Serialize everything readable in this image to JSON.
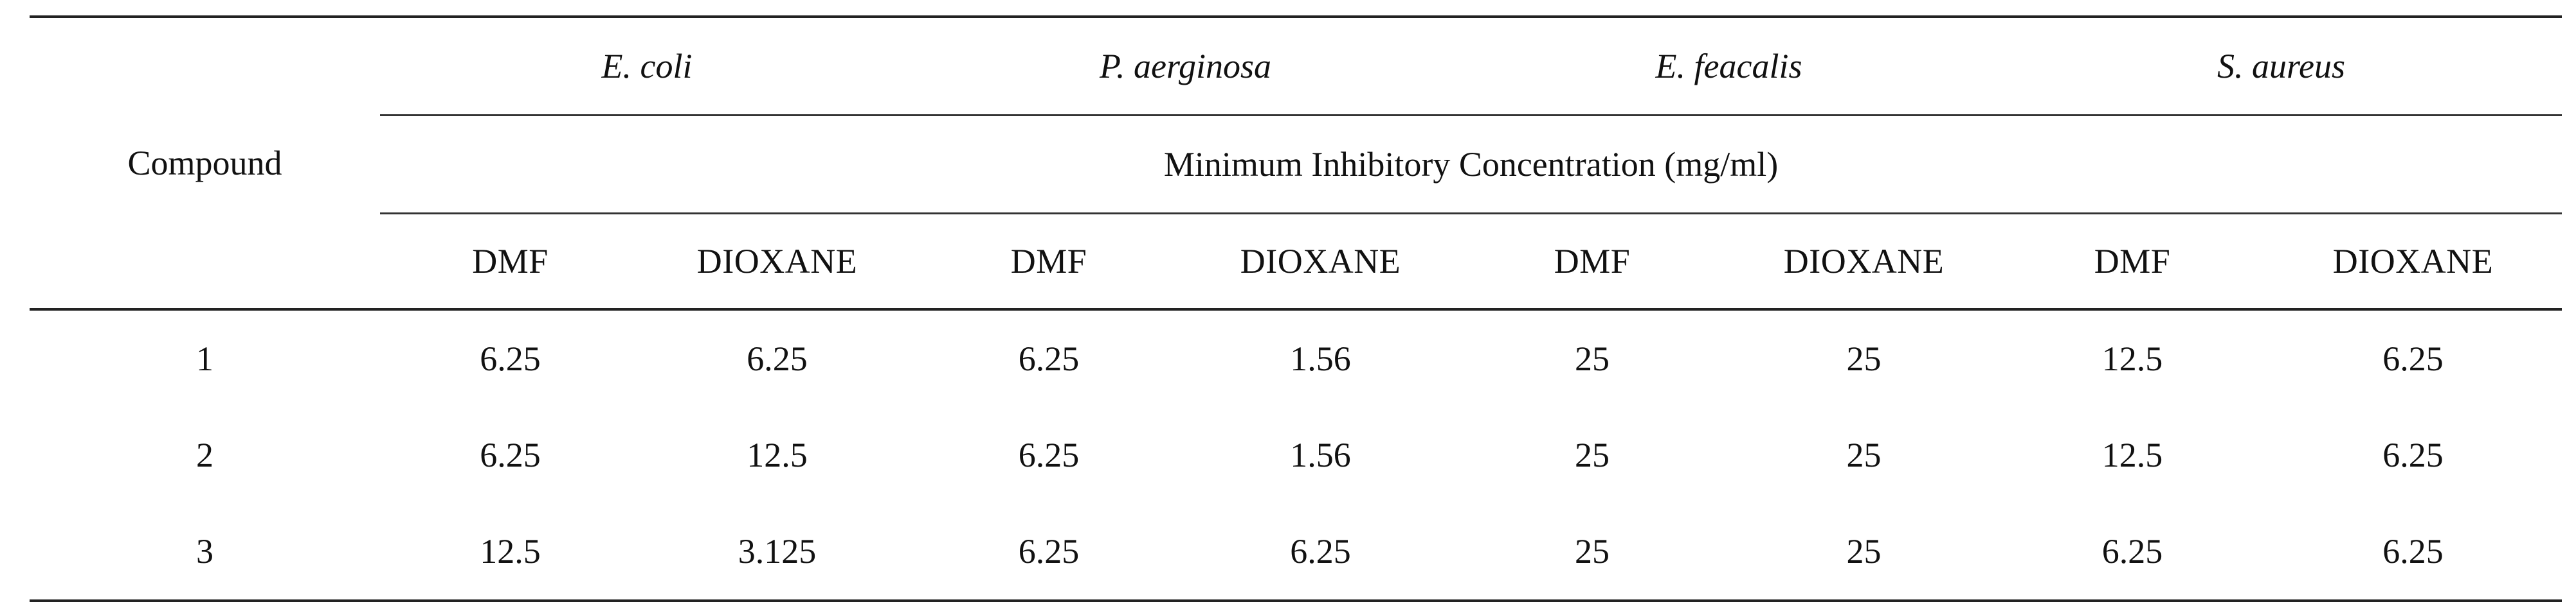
{
  "table": {
    "compound_header": "Compound",
    "organisms": [
      "E. coli",
      "P. aerginosa",
      "E. feacalis",
      "S. aureus"
    ],
    "measure_header": "Minimum Inhibitory Concentration (mg/ml)",
    "solvents": [
      "DMF",
      "DIOXANE",
      "DMF",
      "DIOXANE",
      "DMF",
      "DIOXANE",
      "DMF",
      "DIOXANE"
    ],
    "rows": [
      {
        "compound": "1",
        "values": [
          "6.25",
          "6.25",
          "6.25",
          "1.56",
          "25",
          "25",
          "12.5",
          "6.25"
        ]
      },
      {
        "compound": "2",
        "values": [
          "6.25",
          "12.5",
          "6.25",
          "1.56",
          "25",
          "25",
          "12.5",
          "6.25"
        ]
      },
      {
        "compound": "3",
        "values": [
          "12.5",
          "3.125",
          "6.25",
          "6.25",
          "25",
          "25",
          "6.25",
          "6.25"
        ]
      }
    ]
  }
}
